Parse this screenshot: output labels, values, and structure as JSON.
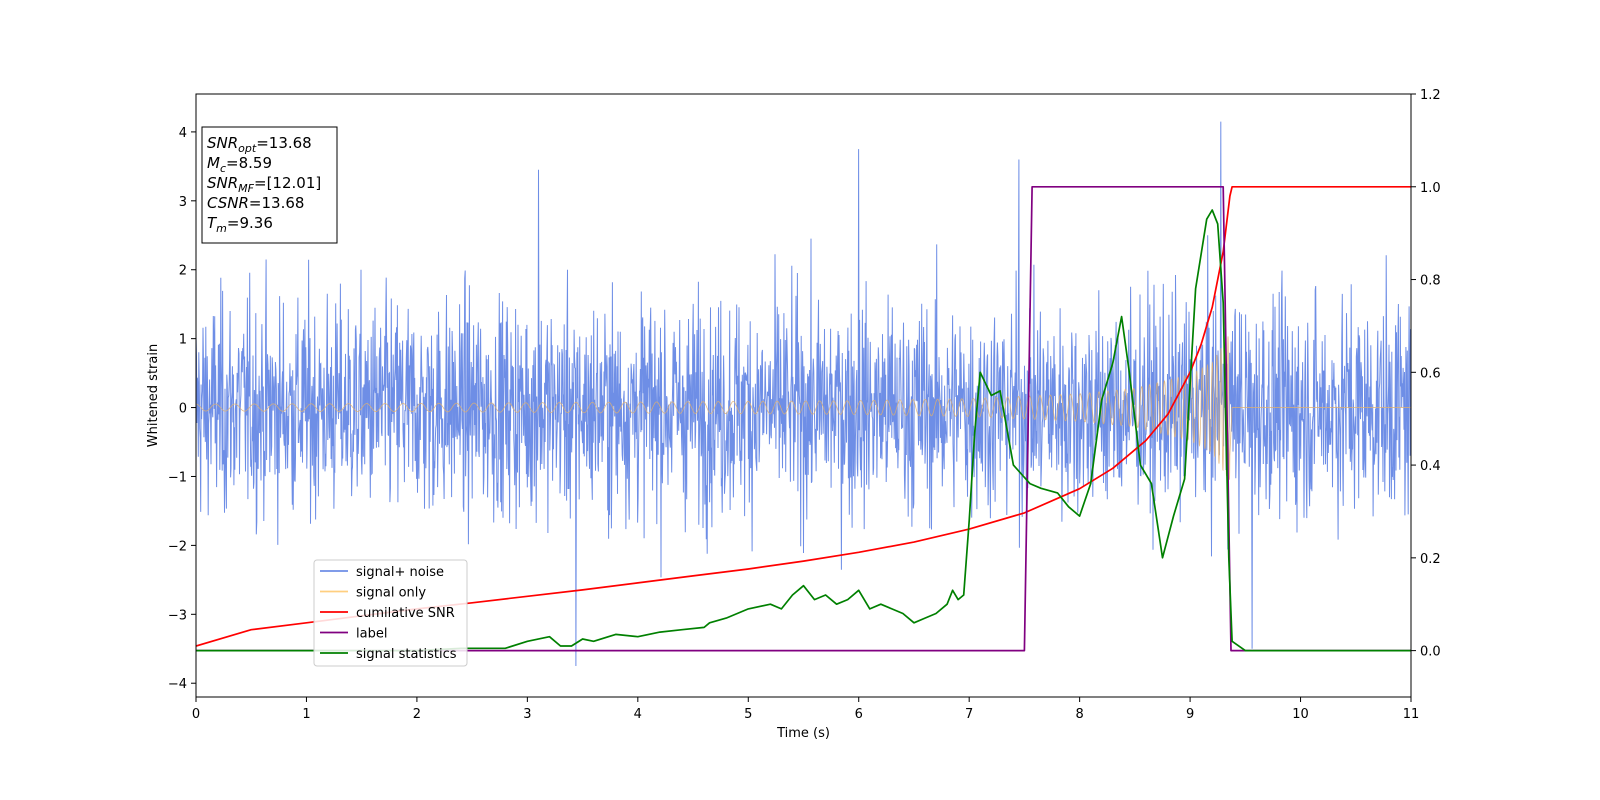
{
  "chart_data": {
    "type": "line",
    "xlabel": "Time (s)",
    "ylabel": "Whitened strain",
    "xlim": [
      0,
      11
    ],
    "ylim": [
      -4.2,
      4.55
    ],
    "y2lim": [
      -0.1,
      1.2
    ],
    "xticks": [
      0,
      1,
      2,
      3,
      4,
      5,
      6,
      7,
      8,
      9,
      10,
      11
    ],
    "yticks": [
      -4,
      -3,
      -2,
      -1,
      0,
      1,
      2,
      3,
      4
    ],
    "y2ticks": [
      0.0,
      0.2,
      0.4,
      0.6,
      0.8,
      1.0,
      1.2
    ],
    "legend_position": "lower-left",
    "grid": false,
    "info_box": {
      "position": "top-left",
      "lines": [
        {
          "base": "SNR",
          "sub": "opt",
          "value": "=13.68"
        },
        {
          "base": "M",
          "sub": "c",
          "value": "=8.59"
        },
        {
          "base": "SNR",
          "sub": "MF",
          "value": "=[12.01]"
        },
        {
          "base": "CSNR",
          "sub": "",
          "value": "=13.68"
        },
        {
          "base": "T",
          "sub": "m",
          "value": "=9.36"
        }
      ]
    },
    "series": [
      {
        "name": "signal+ noise",
        "color": "#6e8ee6",
        "axis": "left",
        "kind": "noise",
        "std": 0.78,
        "x_range": [
          0,
          11
        ],
        "peaks": [
          [
            3.44,
            -3.75
          ],
          [
            6.0,
            3.75
          ],
          [
            9.28,
            4.15
          ],
          [
            7.45,
            3.6
          ],
          [
            3.1,
            3.45
          ],
          [
            9.56,
            -3.5
          ]
        ]
      },
      {
        "name": "signal only",
        "color": "#e0b070",
        "axis": "left",
        "kind": "chirp",
        "envelope": [
          [
            0,
            0.05
          ],
          [
            2,
            0.06
          ],
          [
            4,
            0.08
          ],
          [
            6,
            0.1
          ],
          [
            7,
            0.13
          ],
          [
            8,
            0.2
          ],
          [
            8.5,
            0.28
          ],
          [
            9,
            0.48
          ],
          [
            9.2,
            0.65
          ],
          [
            9.35,
            1.05
          ]
        ],
        "end_time": 9.36
      },
      {
        "name": "cumilative SNR",
        "color": "#ff0000",
        "axis": "right",
        "x": [
          0,
          0.5,
          1,
          1.5,
          2,
          2.5,
          3,
          3.5,
          4,
          4.5,
          5,
          5.5,
          6,
          6.5,
          7,
          7.5,
          8,
          8.3,
          8.6,
          8.8,
          9.0,
          9.1,
          9.2,
          9.3,
          9.36,
          9.38,
          11
        ],
        "y": [
          0.01,
          0.045,
          0.06,
          0.075,
          0.09,
          0.103,
          0.117,
          0.131,
          0.146,
          0.161,
          0.176,
          0.193,
          0.212,
          0.234,
          0.262,
          0.297,
          0.349,
          0.393,
          0.453,
          0.51,
          0.6,
          0.66,
          0.74,
          0.86,
          0.98,
          1.0,
          1.0
        ]
      },
      {
        "name": "label",
        "color": "#800080",
        "axis": "right",
        "x": [
          0,
          7.5,
          7.57,
          9.3,
          9.37,
          11
        ],
        "y": [
          0.0,
          0.0,
          1.0,
          1.0,
          0.0,
          0.0
        ]
      },
      {
        "name": "signal statistics",
        "color": "#008000",
        "axis": "right",
        "x": [
          0,
          0.5,
          1,
          1.5,
          2,
          2.4,
          2.6,
          2.8,
          3.0,
          3.2,
          3.3,
          3.4,
          3.5,
          3.6,
          3.8,
          4.0,
          4.2,
          4.4,
          4.6,
          4.65,
          4.8,
          5.0,
          5.2,
          5.3,
          5.4,
          5.5,
          5.6,
          5.7,
          5.8,
          5.9,
          6.0,
          6.1,
          6.2,
          6.3,
          6.4,
          6.5,
          6.6,
          6.7,
          6.8,
          6.85,
          6.9,
          6.95,
          7.0,
          7.05,
          7.1,
          7.2,
          7.28,
          7.4,
          7.55,
          7.65,
          7.8,
          7.9,
          8.0,
          8.1,
          8.2,
          8.3,
          8.38,
          8.45,
          8.55,
          8.65,
          8.75,
          8.85,
          8.95,
          9.05,
          9.15,
          9.2,
          9.25,
          9.3,
          9.35,
          9.38,
          9.5,
          10,
          10.5,
          11
        ],
        "y": [
          0.0,
          0.0,
          0.0,
          0.0,
          0.0,
          0.005,
          0.005,
          0.005,
          0.02,
          0.03,
          0.01,
          0.01,
          0.025,
          0.02,
          0.035,
          0.03,
          0.04,
          0.045,
          0.05,
          0.06,
          0.07,
          0.09,
          0.1,
          0.09,
          0.12,
          0.14,
          0.11,
          0.12,
          0.1,
          0.11,
          0.13,
          0.09,
          0.1,
          0.09,
          0.08,
          0.06,
          0.07,
          0.08,
          0.1,
          0.13,
          0.11,
          0.12,
          0.28,
          0.47,
          0.6,
          0.55,
          0.56,
          0.4,
          0.36,
          0.35,
          0.34,
          0.31,
          0.29,
          0.36,
          0.54,
          0.62,
          0.72,
          0.6,
          0.4,
          0.36,
          0.2,
          0.29,
          0.37,
          0.78,
          0.93,
          0.95,
          0.92,
          0.75,
          0.2,
          0.02,
          0.0,
          0.0,
          0.0,
          0.0
        ]
      }
    ]
  }
}
